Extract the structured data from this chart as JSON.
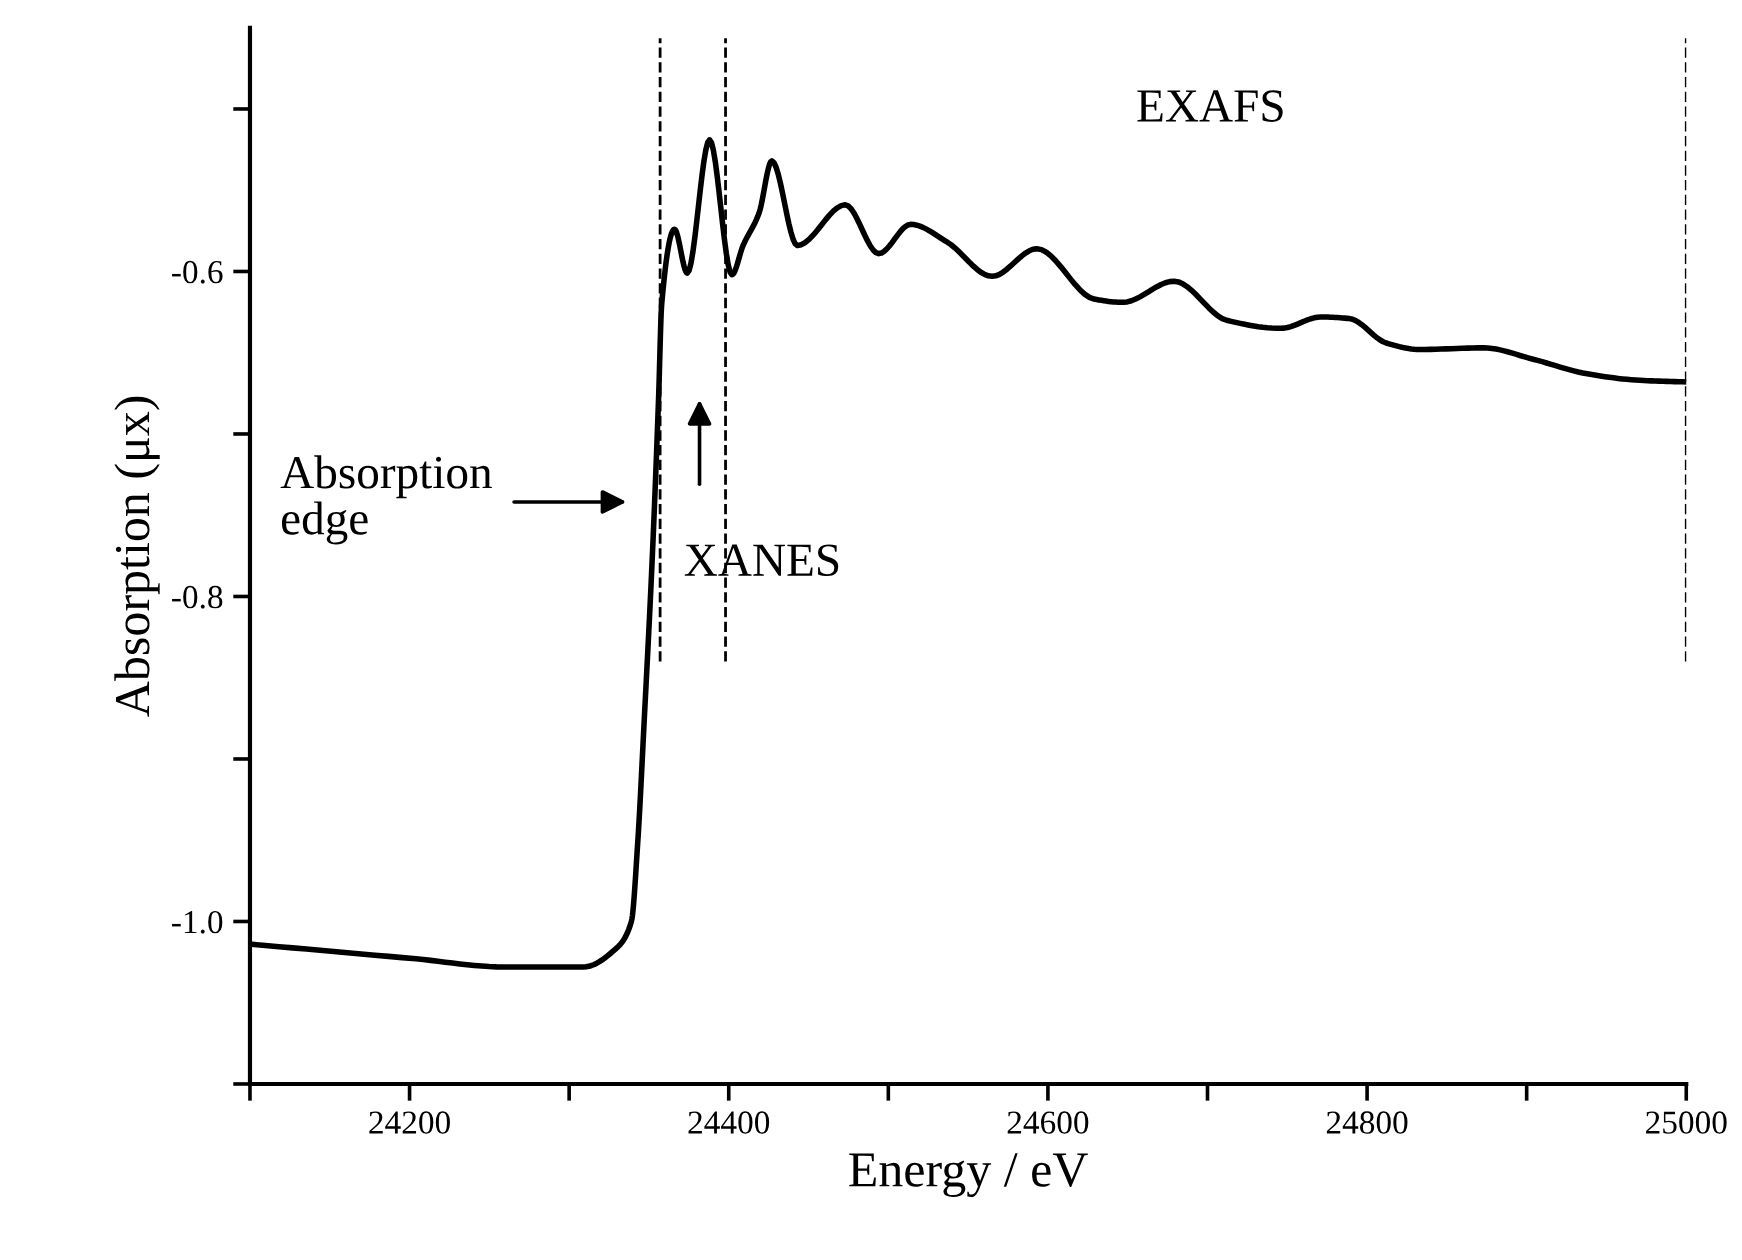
{
  "chart_data": {
    "type": "line",
    "xlabel": "Energy / eV",
    "ylabel": "Absorption (μx)",
    "x": [
      24101,
      24204,
      24259,
      24309,
      24329,
      24339,
      24343,
      24347,
      24352,
      24356,
      24358,
      24366,
      24374,
      24388,
      24402,
      24409,
      24419,
      24427,
      24443,
      24473,
      24494,
      24514,
      24537,
      24565,
      24593,
      24629,
      24647,
      24679,
      24712,
      24746,
      24771,
      24789,
      24812,
      24833,
      24873,
      24904,
      24938,
      24971,
      25000
    ],
    "series": [
      {
        "color": "#000000",
        "values": [
          -1.014,
          -1.023,
          -1.028,
          -1.028,
          -1.017,
          -1.0,
          -0.951,
          -0.877,
          -0.778,
          -0.679,
          -0.62,
          -0.574,
          -0.601,
          -0.519,
          -0.602,
          -0.584,
          -0.564,
          -0.532,
          -0.584,
          -0.559,
          -0.589,
          -0.571,
          -0.582,
          -0.603,
          -0.586,
          -0.617,
          -0.619,
          -0.606,
          -0.63,
          -0.635,
          -0.628,
          -0.629,
          -0.644,
          -0.648,
          -0.647,
          -0.654,
          -0.663,
          -0.667,
          -0.668
        ]
      }
    ],
    "xlim": [
      24100,
      25000
    ],
    "xticks": [
      {
        "value": 24100,
        "label": null
      },
      24200,
      {
        "value": 24300,
        "label": null
      },
      24400,
      {
        "value": 24500,
        "label": null
      },
      24600,
      {
        "value": 24700,
        "label": null
      },
      24800,
      {
        "value": 24900,
        "label": null
      },
      25000
    ],
    "ylim": [
      -1.1,
      -0.45
    ],
    "yticks": [
      {
        "value": -1.1,
        "label": null
      },
      {
        "value": -1.0,
        "label": "-1.0"
      },
      {
        "value": -0.9,
        "label": null
      },
      {
        "value": -0.8,
        "label": "-0.8"
      },
      {
        "value": -0.7,
        "label": null
      },
      {
        "value": -0.6,
        "label": "-0.6"
      },
      {
        "value": -0.5,
        "label": null
      }
    ],
    "ref_lines": [
      {
        "axis": "x",
        "value": 24357,
        "color": "#000000",
        "line_style": "dashed"
      },
      {
        "axis": "x",
        "value": 24398,
        "color": "#000000",
        "line_style": "dashed"
      },
      {
        "axis": "x",
        "value": 25000,
        "color": "#000000",
        "line_style": "dashed"
      }
    ],
    "annotations": [
      "Absorption\nedge",
      "XANES",
      "EXAFS"
    ],
    "grid": false,
    "legend": false,
    "marker": "none",
    "line_style": "solid"
  }
}
